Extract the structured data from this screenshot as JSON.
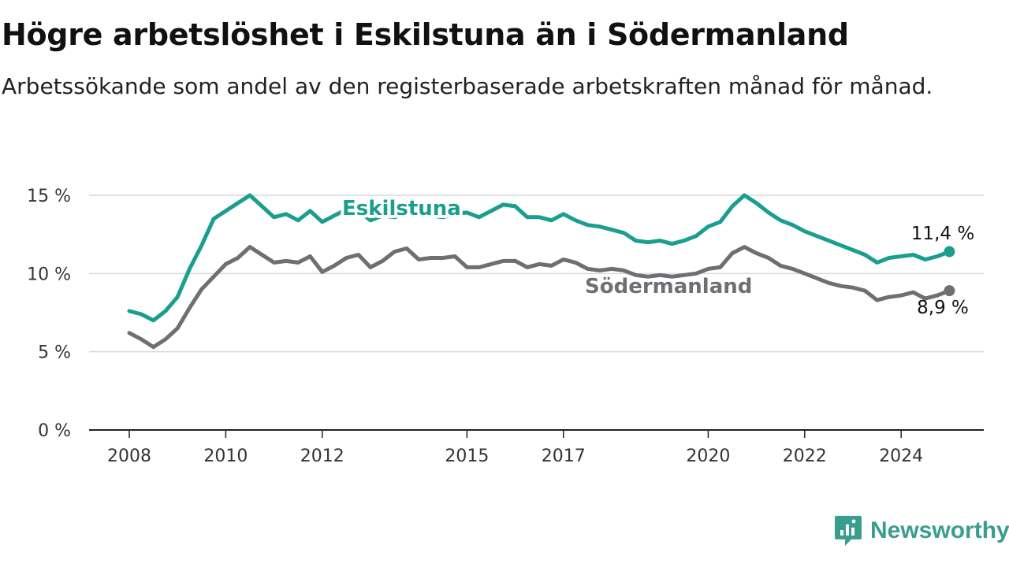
{
  "title": "Högre arbetslöshet i Eskilstuna än i Södermanland",
  "subtitle": "Arbetssökande som andel av den registerbaserade arbetskraften månad för månad.",
  "brand": {
    "name": "Newsworthy",
    "color": "#3a9e8e"
  },
  "chart_data": {
    "type": "line",
    "title": "Högre arbetslöshet i Eskilstuna än i Södermanland",
    "subtitle": "Arbetssökande som andel av den registerbaserade arbetskraften månad för månad.",
    "xlabel": "",
    "ylabel": "",
    "ylim": [
      0,
      15
    ],
    "y_ticks": [
      0,
      5,
      10,
      15
    ],
    "y_tick_labels": [
      "0 %",
      "5 %",
      "10 %",
      "15 %"
    ],
    "x_ticks": [
      2008,
      2010,
      2012,
      2015,
      2017,
      2020,
      2022,
      2024
    ],
    "x_tick_labels": [
      "2008",
      "2010",
      "2012",
      "2015",
      "2017",
      "2020",
      "2022",
      "2024"
    ],
    "grid": "horizontal",
    "series": [
      {
        "name": "Eskilstuna",
        "color": "#1a9e8f",
        "end_label": "11,4 %",
        "x": [
          "2008-01",
          "2008-04",
          "2008-07",
          "2008-10",
          "2009-01",
          "2009-04",
          "2009-07",
          "2009-10",
          "2010-01",
          "2010-04",
          "2010-07",
          "2010-10",
          "2011-01",
          "2011-04",
          "2011-07",
          "2011-10",
          "2012-01",
          "2012-04",
          "2012-07",
          "2012-10",
          "2013-01",
          "2013-04",
          "2013-07",
          "2013-10",
          "2014-01",
          "2014-04",
          "2014-07",
          "2014-10",
          "2015-01",
          "2015-04",
          "2015-07",
          "2015-10",
          "2016-01",
          "2016-04",
          "2016-07",
          "2016-10",
          "2017-01",
          "2017-04",
          "2017-07",
          "2017-10",
          "2018-01",
          "2018-04",
          "2018-07",
          "2018-10",
          "2019-01",
          "2019-04",
          "2019-07",
          "2019-10",
          "2020-01",
          "2020-04",
          "2020-07",
          "2020-10",
          "2021-01",
          "2021-04",
          "2021-07",
          "2021-10",
          "2022-01",
          "2022-04",
          "2022-07",
          "2022-10",
          "2023-01",
          "2023-04",
          "2023-07",
          "2023-10",
          "2024-01",
          "2024-04",
          "2024-07",
          "2024-10",
          "2025-01"
        ],
        "values": [
          7.6,
          7.4,
          7.0,
          7.6,
          8.5,
          10.3,
          11.8,
          13.5,
          14.0,
          14.5,
          15.0,
          14.3,
          13.6,
          13.8,
          13.4,
          14.0,
          13.3,
          13.7,
          14.1,
          14.0,
          13.4,
          13.7,
          13.6,
          13.9,
          13.8,
          13.7,
          13.6,
          13.8,
          13.9,
          13.6,
          14.0,
          14.4,
          14.3,
          13.6,
          13.6,
          13.4,
          13.8,
          13.4,
          13.1,
          13.0,
          12.8,
          12.6,
          12.1,
          12.0,
          12.1,
          11.9,
          12.1,
          12.4,
          13.0,
          13.3,
          14.3,
          15.0,
          14.5,
          13.9,
          13.4,
          13.1,
          12.7,
          12.4,
          12.1,
          11.8,
          11.5,
          11.2,
          10.7,
          11.0,
          11.1,
          11.2,
          10.9,
          11.1,
          11.4
        ]
      },
      {
        "name": "Södermanland",
        "color": "#6e6e73",
        "end_label": "8,9 %",
        "x": [
          "2008-01",
          "2008-04",
          "2008-07",
          "2008-10",
          "2009-01",
          "2009-04",
          "2009-07",
          "2009-10",
          "2010-01",
          "2010-04",
          "2010-07",
          "2010-10",
          "2011-01",
          "2011-04",
          "2011-07",
          "2011-10",
          "2012-01",
          "2012-04",
          "2012-07",
          "2012-10",
          "2013-01",
          "2013-04",
          "2013-07",
          "2013-10",
          "2014-01",
          "2014-04",
          "2014-07",
          "2014-10",
          "2015-01",
          "2015-04",
          "2015-07",
          "2015-10",
          "2016-01",
          "2016-04",
          "2016-07",
          "2016-10",
          "2017-01",
          "2017-04",
          "2017-07",
          "2017-10",
          "2018-01",
          "2018-04",
          "2018-07",
          "2018-10",
          "2019-01",
          "2019-04",
          "2019-07",
          "2019-10",
          "2020-01",
          "2020-04",
          "2020-07",
          "2020-10",
          "2021-01",
          "2021-04",
          "2021-07",
          "2021-10",
          "2022-01",
          "2022-04",
          "2022-07",
          "2022-10",
          "2023-01",
          "2023-04",
          "2023-07",
          "2023-10",
          "2024-01",
          "2024-04",
          "2024-07",
          "2024-10",
          "2025-01"
        ],
        "values": [
          6.2,
          5.8,
          5.3,
          5.8,
          6.5,
          7.8,
          9.0,
          9.8,
          10.6,
          11.0,
          11.7,
          11.2,
          10.7,
          10.8,
          10.7,
          11.1,
          10.1,
          10.5,
          11.0,
          11.2,
          10.4,
          10.8,
          11.4,
          11.6,
          10.9,
          11.0,
          11.0,
          11.1,
          10.4,
          10.4,
          10.6,
          10.8,
          10.8,
          10.4,
          10.6,
          10.5,
          10.9,
          10.7,
          10.3,
          10.2,
          10.3,
          10.2,
          9.9,
          9.8,
          9.9,
          9.8,
          9.9,
          10.0,
          10.3,
          10.4,
          11.3,
          11.7,
          11.3,
          11.0,
          10.5,
          10.3,
          10.0,
          9.7,
          9.4,
          9.2,
          9.1,
          8.9,
          8.3,
          8.5,
          8.6,
          8.8,
          8.4,
          8.6,
          8.9
        ]
      }
    ]
  }
}
